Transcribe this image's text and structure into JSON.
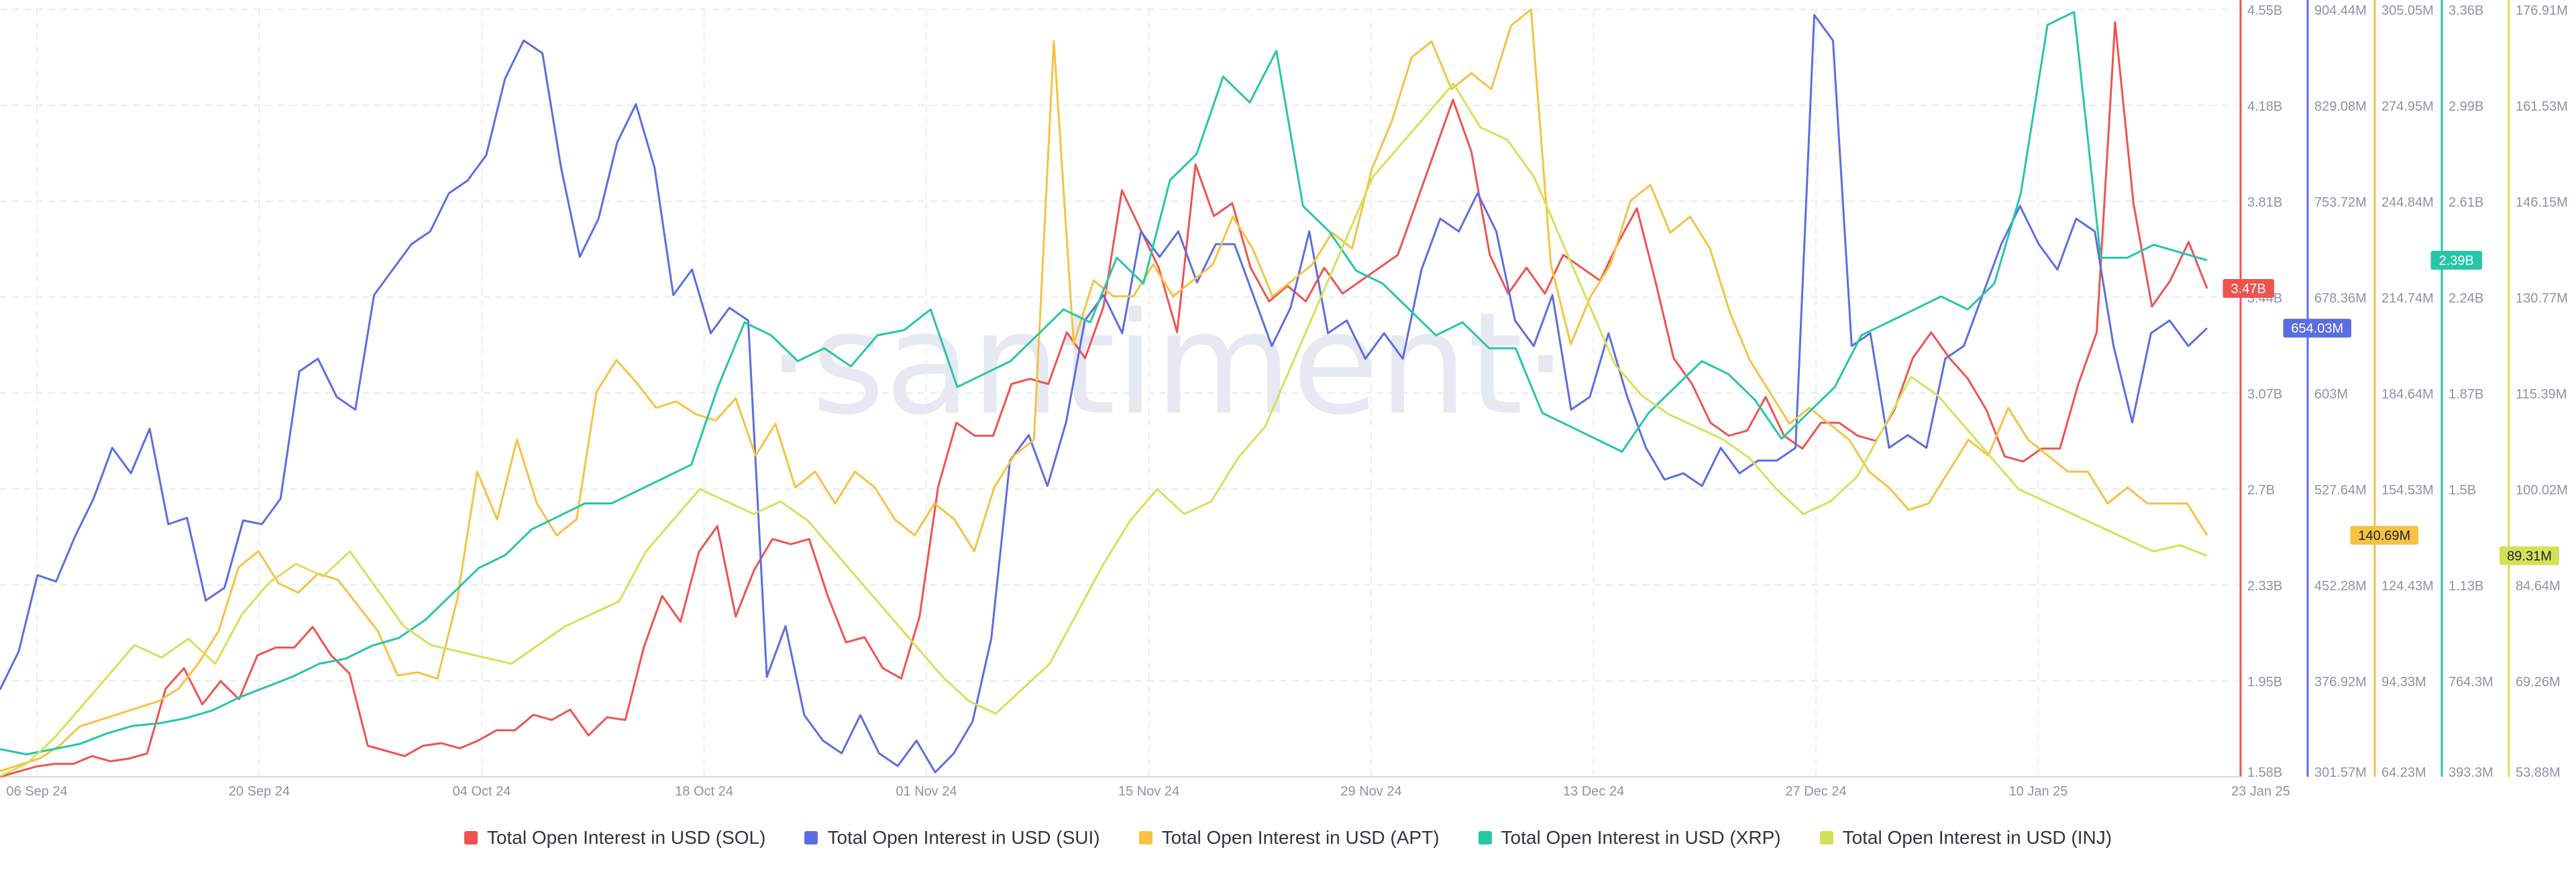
{
  "watermark": "·santiment·",
  "chart_data": {
    "type": "line",
    "x_labels": [
      "06 Sep 24",
      "20 Sep 24",
      "04 Oct 24",
      "18 Oct 24",
      "01 Nov 24",
      "15 Nov 24",
      "29 Nov 24",
      "13 Dec 24",
      "27 Dec 24",
      "10 Jan 25",
      "23 Jan 25"
    ],
    "series": [
      {
        "name": "Total Open Interest in USD (SOL)",
        "color": "#ef5350",
        "axis_ticks": [
          "4.55B",
          "4.18B",
          "3.81B",
          "3.44B",
          "3.07B",
          "2.7B",
          "2.33B",
          "1.95B",
          "1.58B"
        ],
        "ylim": [
          1.58,
          4.55
        ],
        "current": "3.47B",
        "values": [
          1.58,
          1.6,
          1.62,
          1.63,
          1.63,
          1.66,
          1.64,
          1.65,
          1.67,
          1.92,
          2.0,
          1.86,
          1.95,
          1.88,
          2.05,
          2.08,
          2.08,
          2.16,
          2.05,
          1.98,
          1.7,
          1.68,
          1.66,
          1.7,
          1.71,
          1.69,
          1.72,
          1.76,
          1.76,
          1.82,
          1.8,
          1.84,
          1.74,
          1.81,
          1.8,
          2.08,
          2.28,
          2.18,
          2.45,
          2.55,
          2.2,
          2.38,
          2.5,
          2.48,
          2.5,
          2.28,
          2.1,
          2.12,
          2.0,
          1.96,
          2.2,
          2.7,
          2.95,
          2.9,
          2.9,
          3.1,
          3.12,
          3.1,
          3.3,
          3.2,
          3.4,
          3.85,
          3.7,
          3.55,
          3.3,
          3.95,
          3.75,
          3.8,
          3.55,
          3.42,
          3.48,
          3.42,
          3.55,
          3.45,
          3.5,
          3.55,
          3.6,
          3.8,
          4.0,
          4.2,
          4.0,
          3.6,
          3.45,
          3.55,
          3.45,
          3.6,
          3.55,
          3.5,
          3.65,
          3.78,
          3.5,
          3.2,
          3.1,
          2.95,
          2.9,
          2.92,
          3.05,
          2.9,
          2.85,
          2.95,
          2.95,
          2.9,
          2.88,
          3.0,
          3.2,
          3.3,
          3.2,
          3.12,
          3.0,
          2.82,
          2.8,
          2.85,
          2.85,
          3.1,
          3.3,
          4.5,
          3.8,
          3.4,
          3.5,
          3.65,
          3.47
        ]
      },
      {
        "name": "Total Open Interest in USD (SUI)",
        "color": "#5b6ee1",
        "axis_ticks": [
          "904.44M",
          "829.08M",
          "753.72M",
          "678.36M",
          "603M",
          "527.64M",
          "452.28M",
          "376.92M",
          "301.57M"
        ],
        "ylim": [
          301.57,
          904.44
        ],
        "current": "654.03M",
        "values": [
          370,
          400,
          460,
          455,
          490,
          520,
          560,
          540,
          575,
          500,
          505,
          440,
          450,
          503,
          500,
          520,
          620,
          630,
          600,
          590,
          680,
          700,
          720,
          730,
          760,
          770,
          790,
          850,
          880,
          870,
          780,
          710,
          740,
          800,
          830,
          780,
          680,
          700,
          650,
          670,
          660,
          380,
          420,
          350,
          330,
          320,
          350,
          320,
          310,
          330,
          305,
          320,
          345,
          410,
          550,
          570,
          530,
          580,
          660,
          680,
          650,
          730,
          710,
          730,
          690,
          720,
          720,
          680,
          640,
          670,
          730,
          650,
          660,
          630,
          650,
          630,
          700,
          740,
          730,
          760,
          730,
          660,
          640,
          680,
          590,
          600,
          650,
          600,
          560,
          535,
          540,
          530,
          560,
          540,
          550,
          550,
          560,
          900,
          880,
          640,
          650,
          560,
          570,
          560,
          630,
          640,
          680,
          720,
          750,
          720,
          700,
          740,
          730,
          640,
          580,
          650,
          660,
          640,
          654
        ]
      },
      {
        "name": "Total Open Interest in USD (APT)",
        "color": "#f5c242",
        "axis_ticks": [
          "305.05M",
          "274.95M",
          "244.84M",
          "214.74M",
          "184.64M",
          "154.53M",
          "124.43M",
          "94.33M",
          "64.23M"
        ],
        "ylim": [
          64.23,
          305.05
        ],
        "current": "140.69M",
        "values": [
          66,
          68,
          70,
          74,
          80,
          82,
          84,
          86,
          88,
          92,
          100,
          110,
          130,
          135,
          125,
          122,
          128,
          126,
          118,
          110,
          96,
          97,
          95,
          120,
          160,
          145,
          170,
          150,
          140,
          145,
          185,
          195,
          188,
          180,
          182,
          178,
          176,
          183,
          165,
          175,
          155,
          160,
          150,
          160,
          155,
          145,
          140,
          150,
          145,
          135,
          155,
          165,
          170,
          295,
          200,
          220,
          215,
          215,
          225,
          215,
          220,
          225,
          240,
          230,
          215,
          220,
          225,
          235,
          230,
          255,
          270,
          290,
          295,
          280,
          285,
          280,
          300,
          305,
          225,
          200,
          215,
          225,
          245,
          250,
          235,
          240,
          230,
          210,
          195,
          185,
          175,
          180,
          175,
          170,
          160,
          155,
          148,
          150,
          160,
          170,
          165,
          180,
          170,
          165,
          160,
          160,
          150,
          155,
          150,
          150,
          150,
          140
        ]
      },
      {
        "name": "Total Open Interest in USD (XRP)",
        "color": "#26c6a6",
        "axis_ticks": [
          "3.36B",
          "2.99B",
          "2.61B",
          "2.24B",
          "1.87B",
          "1.5B",
          "1.13B",
          "764.3M",
          "393.3M"
        ],
        "ylim": [
          393.3,
          3360
        ],
        "current": "2.39B",
        "values": [
          500,
          480,
          500,
          520,
          560,
          590,
          600,
          620,
          650,
          700,
          740,
          780,
          830,
          850,
          900,
          930,
          1000,
          1100,
          1200,
          1250,
          1350,
          1400,
          1450,
          1450,
          1500,
          1550,
          1600,
          1900,
          2150,
          2100,
          2000,
          2050,
          1980,
          2100,
          2120,
          2200,
          1900,
          1950,
          2000,
          2100,
          2200,
          2150,
          2400,
          2300,
          2700,
          2800,
          3100,
          3000,
          3200,
          2600,
          2500,
          2350,
          2300,
          2200,
          2100,
          2150,
          2050,
          2050,
          1800,
          1750,
          1700,
          1650,
          1800,
          1900,
          2000,
          1950,
          1850,
          1700,
          1800,
          1900,
          2100,
          2150,
          2200,
          2250,
          2200,
          2300,
          2650,
          3300,
          3350,
          2400,
          2400,
          2450,
          2420,
          2390
        ]
      },
      {
        "name": "Total Open Interest in USD (INJ)",
        "color": "#d4e157",
        "axis_ticks": [
          "176.91M",
          "161.53M",
          "146.15M",
          "130.77M",
          "115.39M",
          "100.02M",
          "84.64M",
          "69.26M",
          "53.88M"
        ],
        "ylim": [
          53.88,
          176.91
        ],
        "current": "89.31M",
        "values": [
          54,
          56,
          60,
          65,
          70,
          75,
          73,
          76,
          72,
          80,
          85,
          88,
          86,
          90,
          84,
          78,
          75,
          74,
          73,
          72,
          75,
          78,
          80,
          82,
          90,
          95,
          100,
          98,
          96,
          98,
          95,
          90,
          85,
          80,
          75,
          70,
          66,
          64,
          68,
          72,
          80,
          88,
          95,
          100,
          96,
          98,
          105,
          110,
          120,
          130,
          140,
          150,
          155,
          160,
          165,
          158,
          156,
          150,
          140,
          130,
          120,
          115,
          112,
          110,
          108,
          105,
          100,
          96,
          98,
          102,
          110,
          118,
          115,
          110,
          105,
          100,
          98,
          96,
          94,
          92,
          90,
          91,
          89.31
        ]
      }
    ],
    "xlabel": "",
    "ylabel": "",
    "legend_position": "bottom-center",
    "grid": true
  }
}
